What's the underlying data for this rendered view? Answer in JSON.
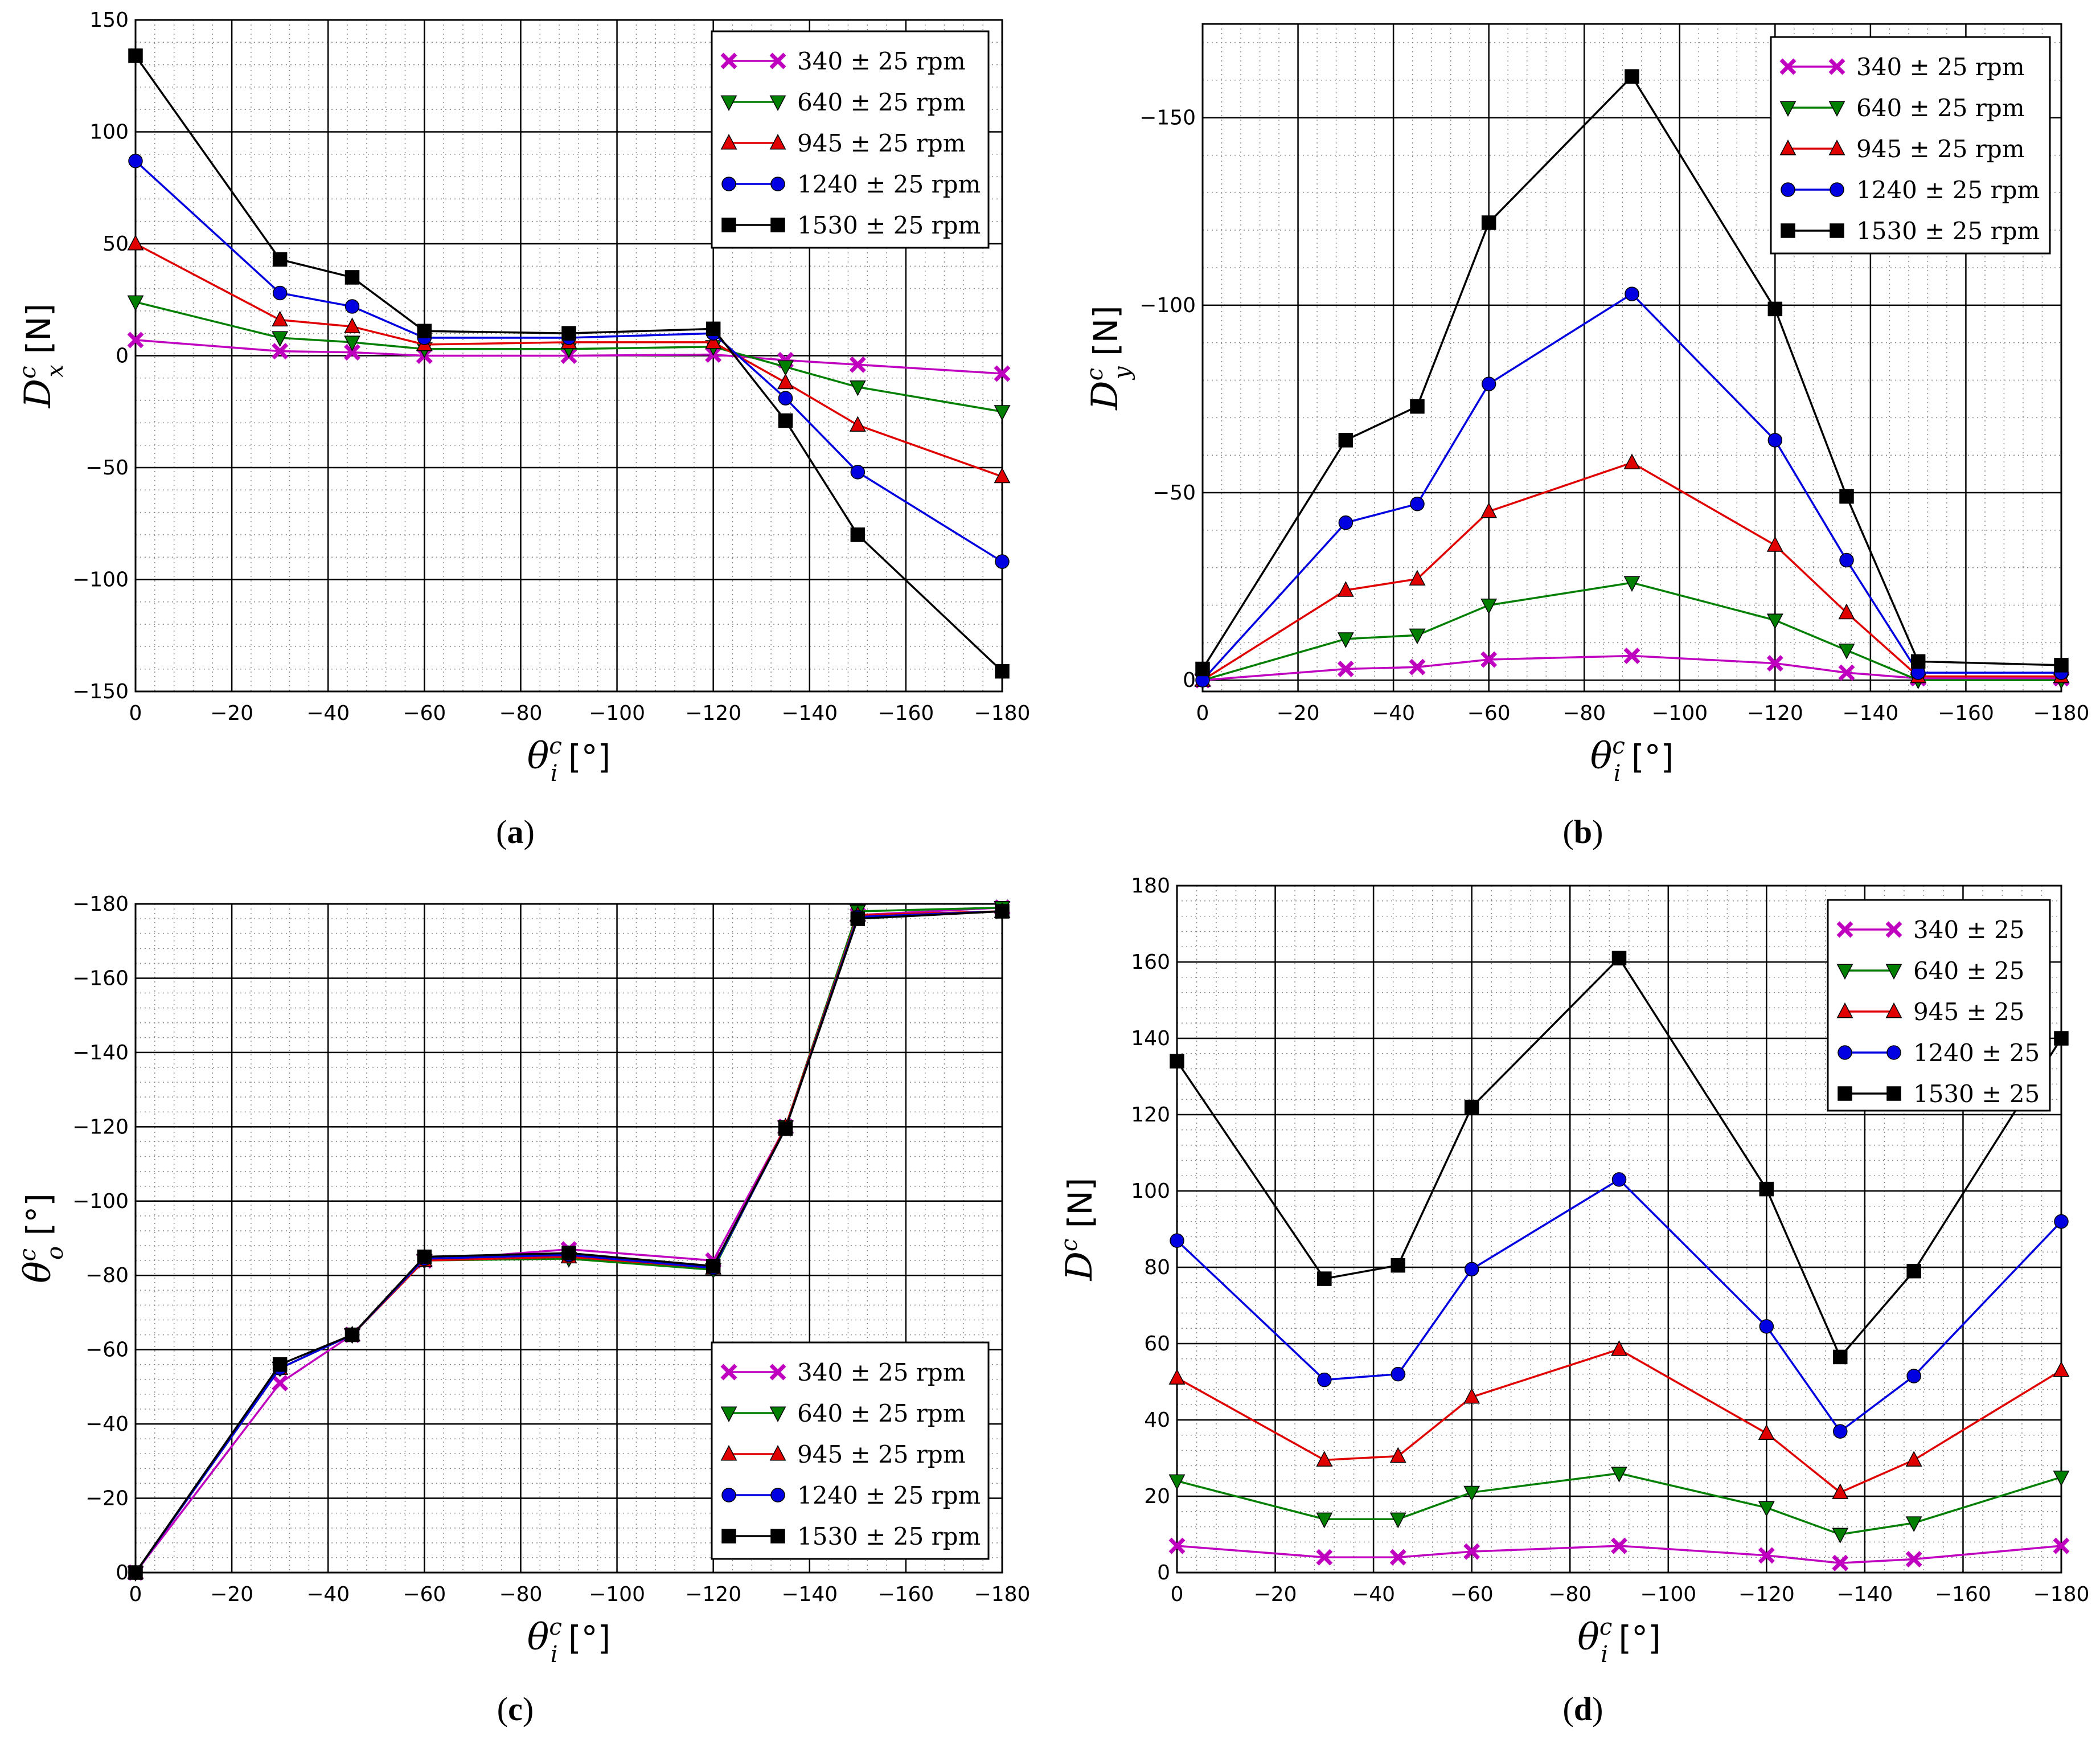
{
  "figure": {
    "captions": [
      "(a)",
      "(b)",
      "(c)",
      "(d)"
    ]
  },
  "colors": {
    "340": "#bf00bf",
    "640": "#007f00",
    "945": "#e00000",
    "1240": "#0000e0",
    "1530": "#000000"
  },
  "chart_data": [
    {
      "id": "a",
      "type": "line",
      "caption": "(a)",
      "xlabel": "θ_i^c [°]",
      "ylabel": "D_x^c [N]",
      "xlim": [
        0,
        -180
      ],
      "ylim": [
        -150,
        150
      ],
      "xticks": [
        0,
        -20,
        -40,
        -60,
        -80,
        -100,
        -120,
        -140,
        -160,
        -180
      ],
      "yticks": [
        -150,
        -100,
        -50,
        0,
        50,
        100,
        150
      ],
      "legend_position": "top-right",
      "x": [
        0,
        -30,
        -45,
        -60,
        -90,
        -120,
        -135,
        -150,
        -180
      ],
      "series": [
        {
          "name": "340 ± 25 rpm",
          "marker": "x",
          "values": [
            7,
            2,
            1.5,
            0,
            0,
            0.5,
            -2,
            -4,
            -8
          ]
        },
        {
          "name": "640 ± 25 rpm",
          "marker": "tri-down",
          "values": [
            24,
            8,
            6,
            3,
            3,
            4,
            -5,
            -14,
            -25
          ]
        },
        {
          "name": "945 ± 25 rpm",
          "marker": "tri-up",
          "values": [
            50,
            16,
            13,
            5,
            6,
            6,
            -12,
            -31,
            -54
          ]
        },
        {
          "name": "1240 ± 25 rpm",
          "marker": "circle",
          "values": [
            87,
            28,
            22,
            8,
            8,
            10,
            -19,
            -52,
            -92
          ]
        },
        {
          "name": "1530 ± 25 rpm",
          "marker": "square",
          "values": [
            134,
            43,
            35,
            11,
            10,
            12,
            -29,
            -80,
            -141
          ]
        }
      ]
    },
    {
      "id": "b",
      "type": "line",
      "caption": "(b)",
      "xlabel": "θ_i^c [°]",
      "ylabel": "D_y^c [N]",
      "xlim": [
        0,
        -180
      ],
      "ylim": [
        3,
        -175
      ],
      "xticks": [
        0,
        -20,
        -40,
        -60,
        -80,
        -100,
        -120,
        -140,
        -160,
        -180
      ],
      "yticks": [
        0,
        -50,
        -100,
        -150
      ],
      "legend_position": "top-right",
      "x": [
        0,
        -30,
        -45,
        -60,
        -90,
        -120,
        -135,
        -150,
        -180
      ],
      "series": [
        {
          "name": "340 ± 25 rpm",
          "marker": "x",
          "values": [
            0,
            -3,
            -3.5,
            -5.5,
            -6.5,
            -4.5,
            -2,
            -0.5,
            -0.5
          ]
        },
        {
          "name": "640 ± 25 rpm",
          "marker": "tri-down",
          "values": [
            0,
            -11,
            -12,
            -20,
            -26,
            -16,
            -8,
            0,
            0
          ]
        },
        {
          "name": "945 ± 25 rpm",
          "marker": "tri-up",
          "values": [
            0,
            -24,
            -27,
            -45,
            -58,
            -36,
            -18,
            -1,
            -1
          ]
        },
        {
          "name": "1240 ± 25 rpm",
          "marker": "circle",
          "values": [
            0,
            -42,
            -47,
            -79,
            -103,
            -64,
            -32,
            -2,
            -2
          ]
        },
        {
          "name": "1530 ± 25 rpm",
          "marker": "square",
          "values": [
            -3,
            -64,
            -73,
            -122,
            -161,
            -99,
            -49,
            -5,
            -4
          ]
        }
      ]
    },
    {
      "id": "c",
      "type": "line",
      "caption": "(c)",
      "xlabel": "θ_i^c [°]",
      "ylabel": "θ_o^c [°]",
      "xlim": [
        0,
        -180
      ],
      "ylim": [
        0,
        -180
      ],
      "xticks": [
        0,
        -20,
        -40,
        -60,
        -80,
        -100,
        -120,
        -140,
        -160,
        -180
      ],
      "yticks": [
        0,
        -20,
        -40,
        -60,
        -80,
        -100,
        -120,
        -140,
        -160,
        -180
      ],
      "legend_position": "bottom-right",
      "x": [
        0,
        -30,
        -45,
        -60,
        -90,
        -120,
        -135,
        -150,
        -180
      ],
      "series": [
        {
          "name": "340 ± 25 rpm",
          "marker": "x",
          "values": [
            0,
            -51,
            -64,
            -84,
            -87,
            -84,
            -120,
            -177,
            -179
          ]
        },
        {
          "name": "640 ± 25 rpm",
          "marker": "tri-down",
          "values": [
            0,
            -55,
            -64,
            -84,
            -84.5,
            -81.5,
            -120,
            -178,
            -179
          ]
        },
        {
          "name": "945 ± 25 rpm",
          "marker": "tri-up",
          "values": [
            0,
            -55,
            -64,
            -84,
            -85,
            -82,
            -120,
            -177,
            -178
          ]
        },
        {
          "name": "1240 ± 25 rpm",
          "marker": "circle",
          "values": [
            0,
            -55,
            -64,
            -84.5,
            -85.5,
            -82,
            -119.5,
            -176.5,
            -178
          ]
        },
        {
          "name": "1530 ± 25 rpm",
          "marker": "square",
          "values": [
            0,
            -56,
            -64,
            -85,
            -86,
            -82.5,
            -119.5,
            -176,
            -178
          ]
        }
      ]
    },
    {
      "id": "d",
      "type": "line",
      "caption": "(d)",
      "xlabel": "θ_i^c [°]",
      "ylabel": "D^c [N]",
      "xlim": [
        0,
        -180
      ],
      "ylim": [
        0,
        180
      ],
      "xticks": [
        0,
        -20,
        -40,
        -60,
        -80,
        -100,
        -120,
        -140,
        -160,
        -180
      ],
      "yticks": [
        0,
        20,
        40,
        60,
        80,
        100,
        120,
        140,
        160,
        180
      ],
      "legend_position": "top-right",
      "x": [
        0,
        -30,
        -45,
        -60,
        -90,
        -120,
        -135,
        -150,
        -180
      ],
      "series": [
        {
          "name": "340 ± 25",
          "marker": "x",
          "values": [
            7,
            4,
            4,
            5.5,
            7,
            4.5,
            2.5,
            3.5,
            7
          ]
        },
        {
          "name": "640 ± 25",
          "marker": "tri-down",
          "values": [
            24,
            14,
            14,
            21,
            26,
            17,
            10,
            13,
            25
          ]
        },
        {
          "name": "945 ± 25",
          "marker": "tri-up",
          "values": [
            51,
            29.5,
            30.5,
            46,
            58.5,
            36.5,
            21,
            29.5,
            53
          ]
        },
        {
          "name": "1240 ± 25",
          "marker": "circle",
          "values": [
            87,
            50.5,
            52,
            79.5,
            103,
            64.5,
            37,
            51.5,
            92
          ]
        },
        {
          "name": "1530 ± 25",
          "marker": "square",
          "values": [
            134,
            77,
            80.5,
            122,
            161,
            100.5,
            56.5,
            79,
            140
          ]
        }
      ]
    }
  ]
}
